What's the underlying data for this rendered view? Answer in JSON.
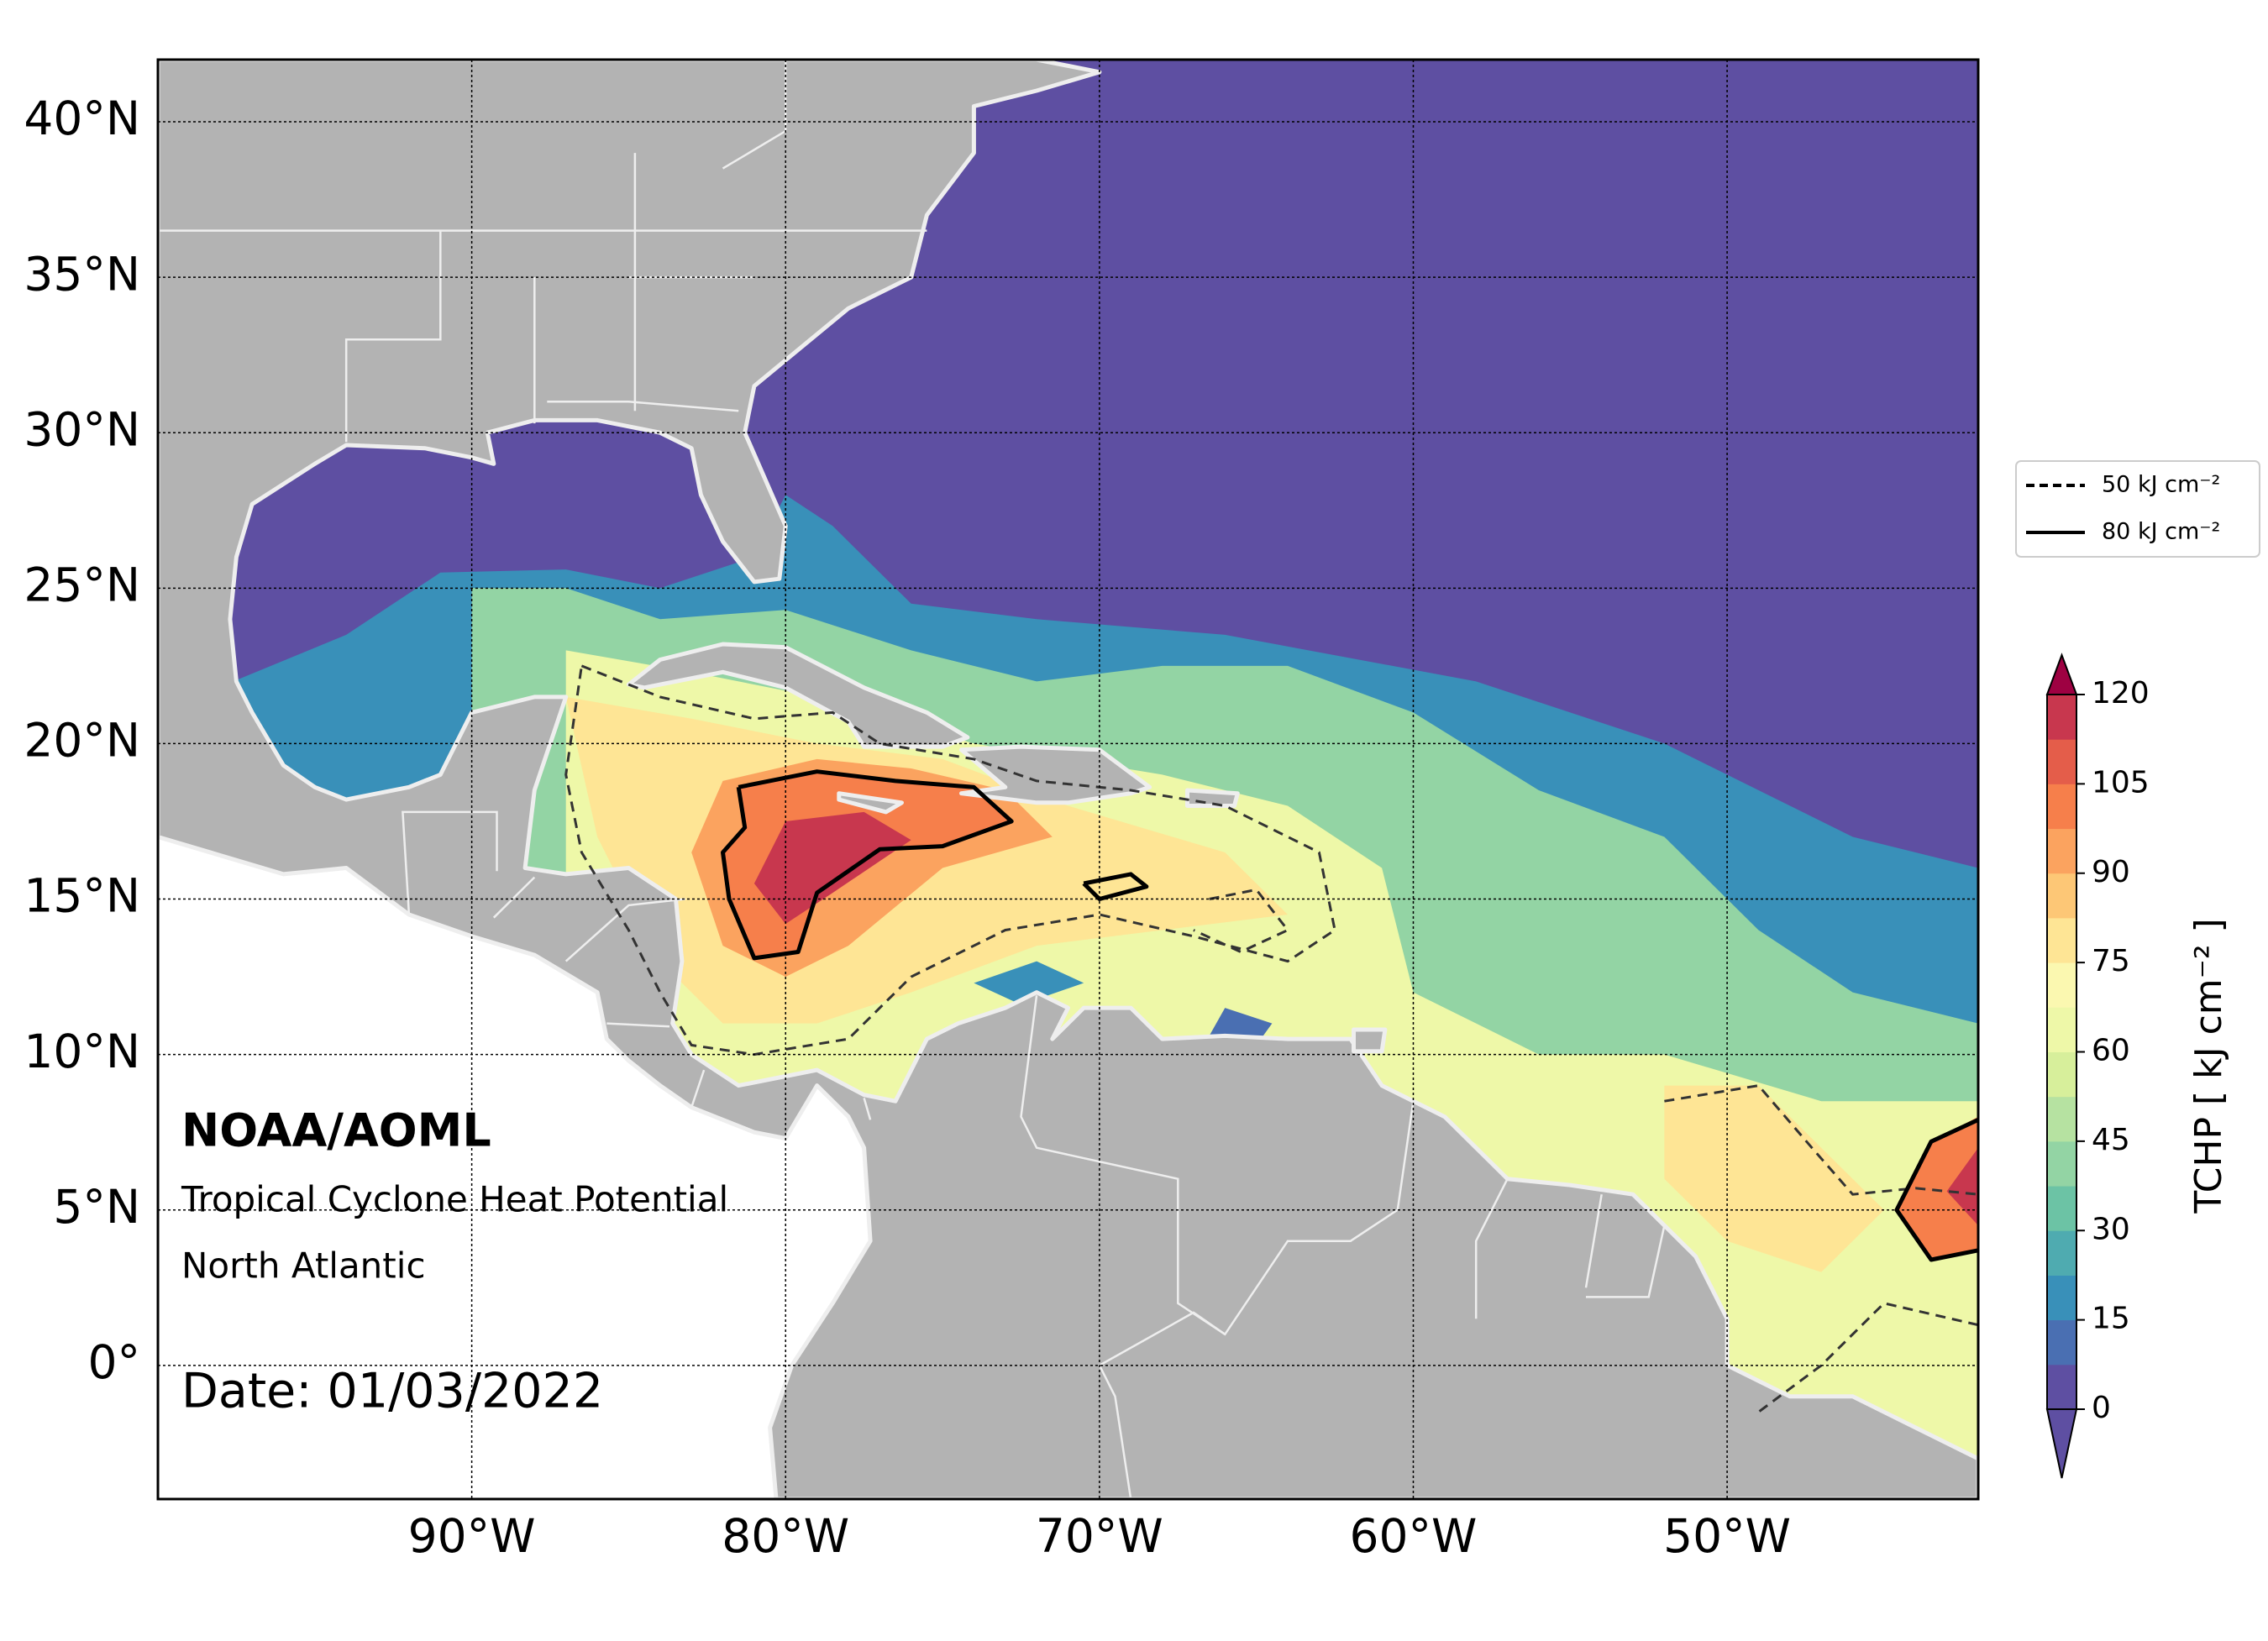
{
  "map": {
    "type": "map",
    "annotations": {
      "organization": "NOAA/AOML",
      "product": "Tropical Cyclone Heat Potential",
      "region": "North Atlantic",
      "date": "Date: 01/03/2022"
    },
    "lonlim": [
      -100,
      -42
    ],
    "latlim": [
      -4.3,
      42
    ],
    "lon_ticks": [
      {
        "value": -90,
        "label": "90°W"
      },
      {
        "value": -80,
        "label": "80°W"
      },
      {
        "value": -70,
        "label": "70°W"
      },
      {
        "value": -60,
        "label": "60°W"
      },
      {
        "value": -50,
        "label": "50°W"
      }
    ],
    "lat_ticks": [
      {
        "value": 40,
        "label": "40°N"
      },
      {
        "value": 35,
        "label": "35°N"
      },
      {
        "value": 30,
        "label": "30°N"
      },
      {
        "value": 25,
        "label": "25°N"
      },
      {
        "value": 20,
        "label": "20°N"
      },
      {
        "value": 15,
        "label": "15°N"
      },
      {
        "value": 10,
        "label": "10°N"
      },
      {
        "value": 5,
        "label": "5°N"
      },
      {
        "value": 0,
        "label": "0°"
      }
    ],
    "grid": true,
    "legend": {
      "position": "right",
      "entries": [
        {
          "label": "50 kJ cm⁻²",
          "style": "dashed"
        },
        {
          "label": "80 kJ cm⁻²",
          "style": "solid"
        }
      ]
    },
    "colorbar": {
      "label": "TCHP [ kJ cm⁻² ]",
      "ticks": [
        0,
        15,
        30,
        45,
        60,
        75,
        90,
        105,
        120
      ],
      "extend": "both",
      "colors": [
        "#5e4fa2",
        "#4a6fb2",
        "#3990b9",
        "#4fabb0",
        "#6cc3a5",
        "#93d4a4",
        "#b6e2a1",
        "#d7ef9b",
        "#eef8a8",
        "#fbf8b0",
        "#fee595",
        "#fdc776",
        "#fba35f",
        "#f67f4b",
        "#e45d4a",
        "#c8374e"
      ],
      "under_color": "#5e4fa2",
      "over_color": "#9e0142"
    }
  }
}
